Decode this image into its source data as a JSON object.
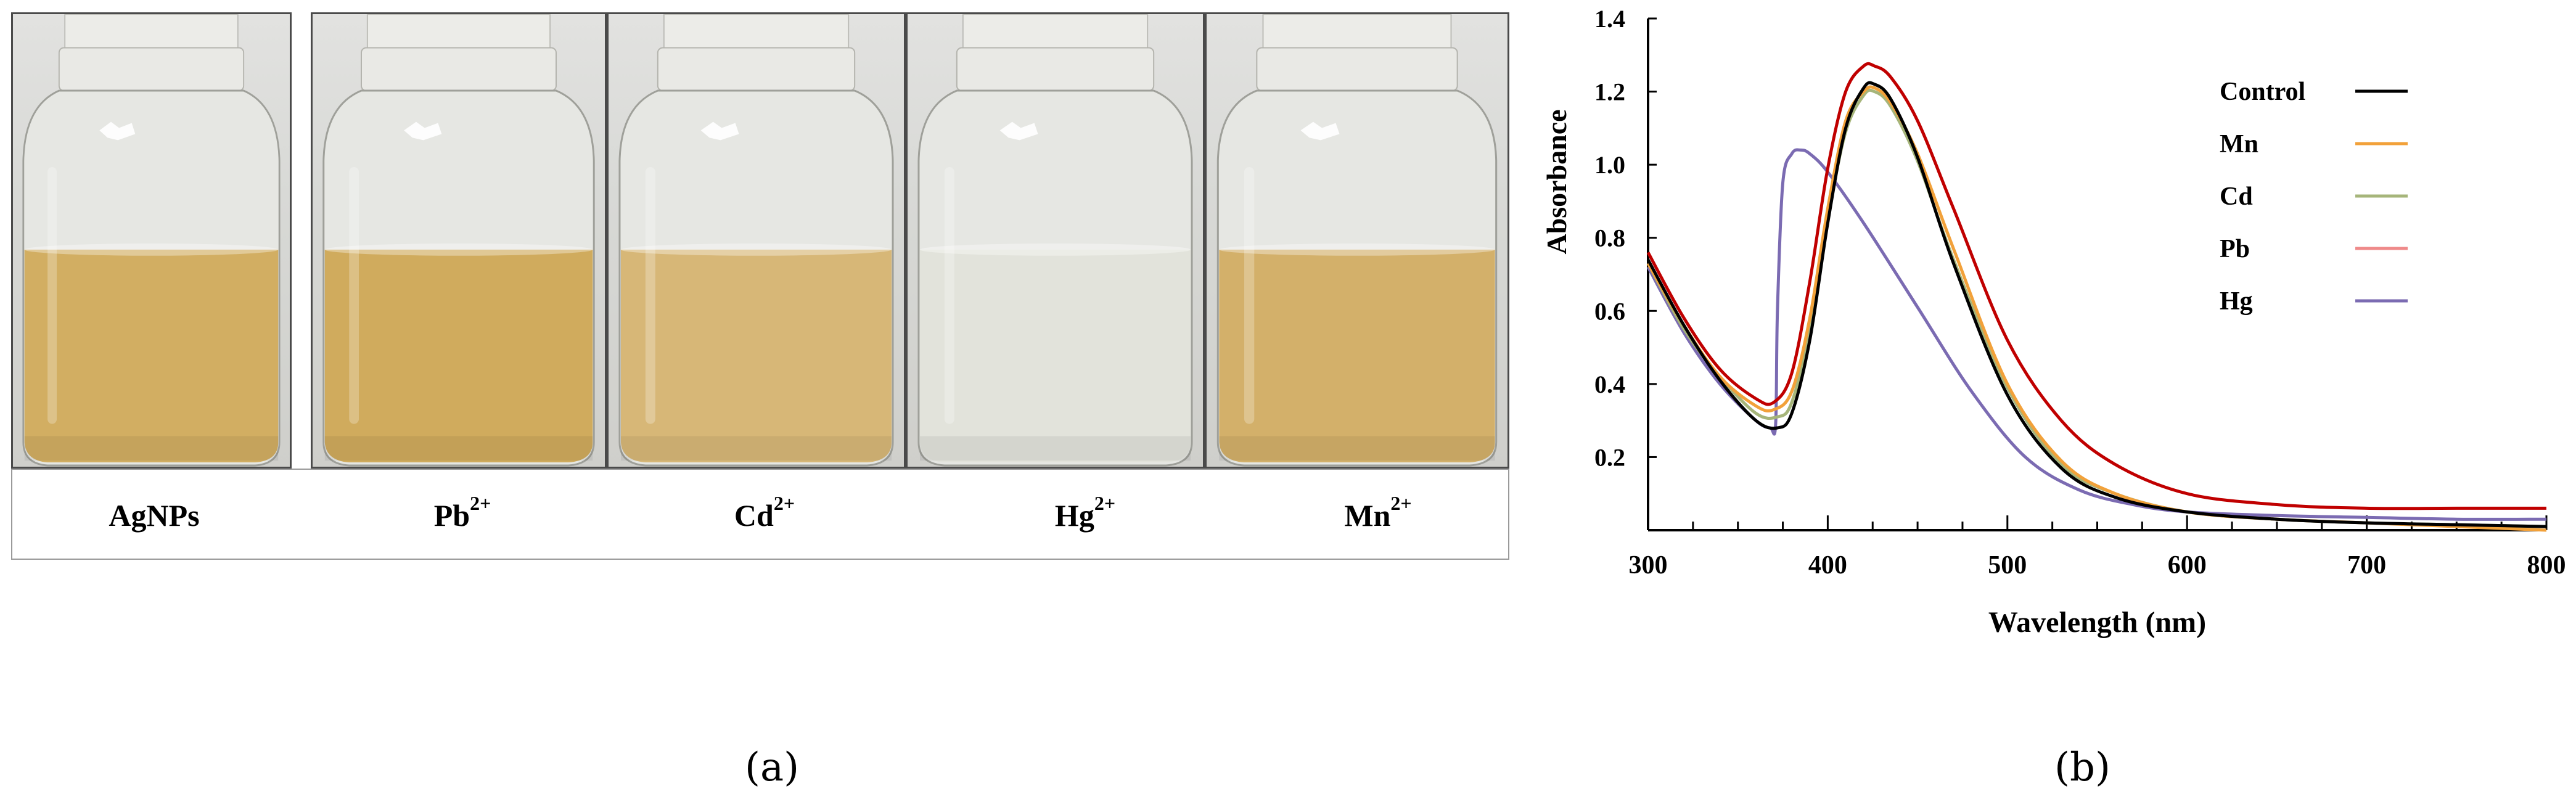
{
  "panel_a": {
    "label": "(a)",
    "samples": [
      {
        "name": "AgNPs",
        "base": "AgNPs",
        "sup": "",
        "liquid_color": "#d2ae62",
        "tint": "golden"
      },
      {
        "name": "Pb2+",
        "base": "Pb",
        "sup": "2+",
        "liquid_color": "#d0ab5d",
        "tint": "golden"
      },
      {
        "name": "Cd2+",
        "base": "Cd",
        "sup": "2+",
        "liquid_color": "#d7b777",
        "tint": "golden"
      },
      {
        "name": "Hg2+",
        "base": "Hg",
        "sup": "2+",
        "liquid_color": "#e2e3db",
        "tint": "colorless"
      },
      {
        "name": "Mn2+",
        "base": "Mn",
        "sup": "2+",
        "liquid_color": "#d3b06a",
        "tint": "golden"
      }
    ]
  },
  "panel_b": {
    "label": "(b)"
  },
  "chart_data": {
    "type": "line",
    "title": "",
    "xlabel": "Wavelength (nm)",
    "ylabel": "Absorbance",
    "xlim": [
      300,
      800
    ],
    "ylim": [
      0,
      1.4
    ],
    "xticks": [
      300,
      400,
      500,
      600,
      700,
      800
    ],
    "xtick_labels": [
      "300",
      "400",
      "500",
      "600",
      "700",
      "800"
    ],
    "yticks": [
      0.2,
      0.4,
      0.6,
      0.8,
      1.0,
      1.2,
      1.4
    ],
    "ytick_labels": [
      "0.2",
      "0.4",
      "0.6",
      "0.8",
      "1.0",
      "1.2",
      "1.4"
    ],
    "grid": false,
    "legend_position": "top-right",
    "series": [
      {
        "name": "Control",
        "color": "#000000",
        "x": [
          300,
          320,
          340,
          360,
          372,
          380,
          390,
          400,
          410,
          420,
          426,
          435,
          450,
          470,
          500,
          530,
          560,
          600,
          650,
          700,
          750,
          800
        ],
        "y": [
          0.74,
          0.56,
          0.41,
          0.3,
          0.28,
          0.32,
          0.52,
          0.84,
          1.1,
          1.21,
          1.22,
          1.18,
          1.02,
          0.73,
          0.37,
          0.17,
          0.09,
          0.05,
          0.03,
          0.02,
          0.015,
          0.01
        ]
      },
      {
        "name": "Mn",
        "color": "#f2a13a",
        "x": [
          300,
          320,
          340,
          360,
          370,
          380,
          390,
          400,
          410,
          420,
          426,
          435,
          450,
          470,
          500,
          530,
          560,
          600,
          650,
          700,
          750,
          800
        ],
        "y": [
          0.73,
          0.56,
          0.42,
          0.34,
          0.33,
          0.38,
          0.58,
          0.88,
          1.12,
          1.2,
          1.21,
          1.17,
          1.03,
          0.77,
          0.4,
          0.19,
          0.1,
          0.05,
          0.03,
          0.02,
          0.01,
          0.0
        ]
      },
      {
        "name": "Cd",
        "color": "#a6b57a",
        "x": [
          300,
          320,
          340,
          360,
          372,
          380,
          390,
          400,
          410,
          420,
          426,
          435,
          450,
          470,
          500,
          530,
          560,
          600,
          650,
          700,
          750,
          800
        ],
        "y": [
          0.73,
          0.55,
          0.42,
          0.32,
          0.31,
          0.35,
          0.55,
          0.85,
          1.09,
          1.19,
          1.2,
          1.16,
          1.01,
          0.74,
          0.39,
          0.18,
          0.1,
          0.05,
          0.03,
          0.02,
          0.015,
          0.01
        ]
      },
      {
        "name": "Pb",
        "color": "#c00000",
        "x": [
          300,
          320,
          340,
          360,
          370,
          380,
          390,
          400,
          410,
          420,
          426,
          435,
          450,
          470,
          500,
          530,
          560,
          600,
          650,
          700,
          750,
          800
        ],
        "y": [
          0.76,
          0.58,
          0.44,
          0.36,
          0.35,
          0.43,
          0.68,
          0.99,
          1.2,
          1.27,
          1.27,
          1.24,
          1.12,
          0.88,
          0.52,
          0.3,
          0.18,
          0.1,
          0.07,
          0.06,
          0.06,
          0.06
        ]
      },
      {
        "name": "Hg",
        "color": "#7b6bb2",
        "x": [
          300,
          320,
          340,
          360,
          368,
          371,
          372,
          375,
          380,
          385,
          390,
          400,
          420,
          450,
          480,
          510,
          540,
          570,
          600,
          650,
          700,
          750,
          800
        ],
        "y": [
          0.72,
          0.54,
          0.4,
          0.3,
          0.28,
          0.29,
          0.6,
          0.95,
          1.03,
          1.04,
          1.03,
          0.98,
          0.84,
          0.61,
          0.38,
          0.2,
          0.11,
          0.07,
          0.05,
          0.04,
          0.035,
          0.03,
          0.03
        ]
      }
    ]
  },
  "legend_line_colors": {
    "Pb": "#ef8a8a"
  }
}
